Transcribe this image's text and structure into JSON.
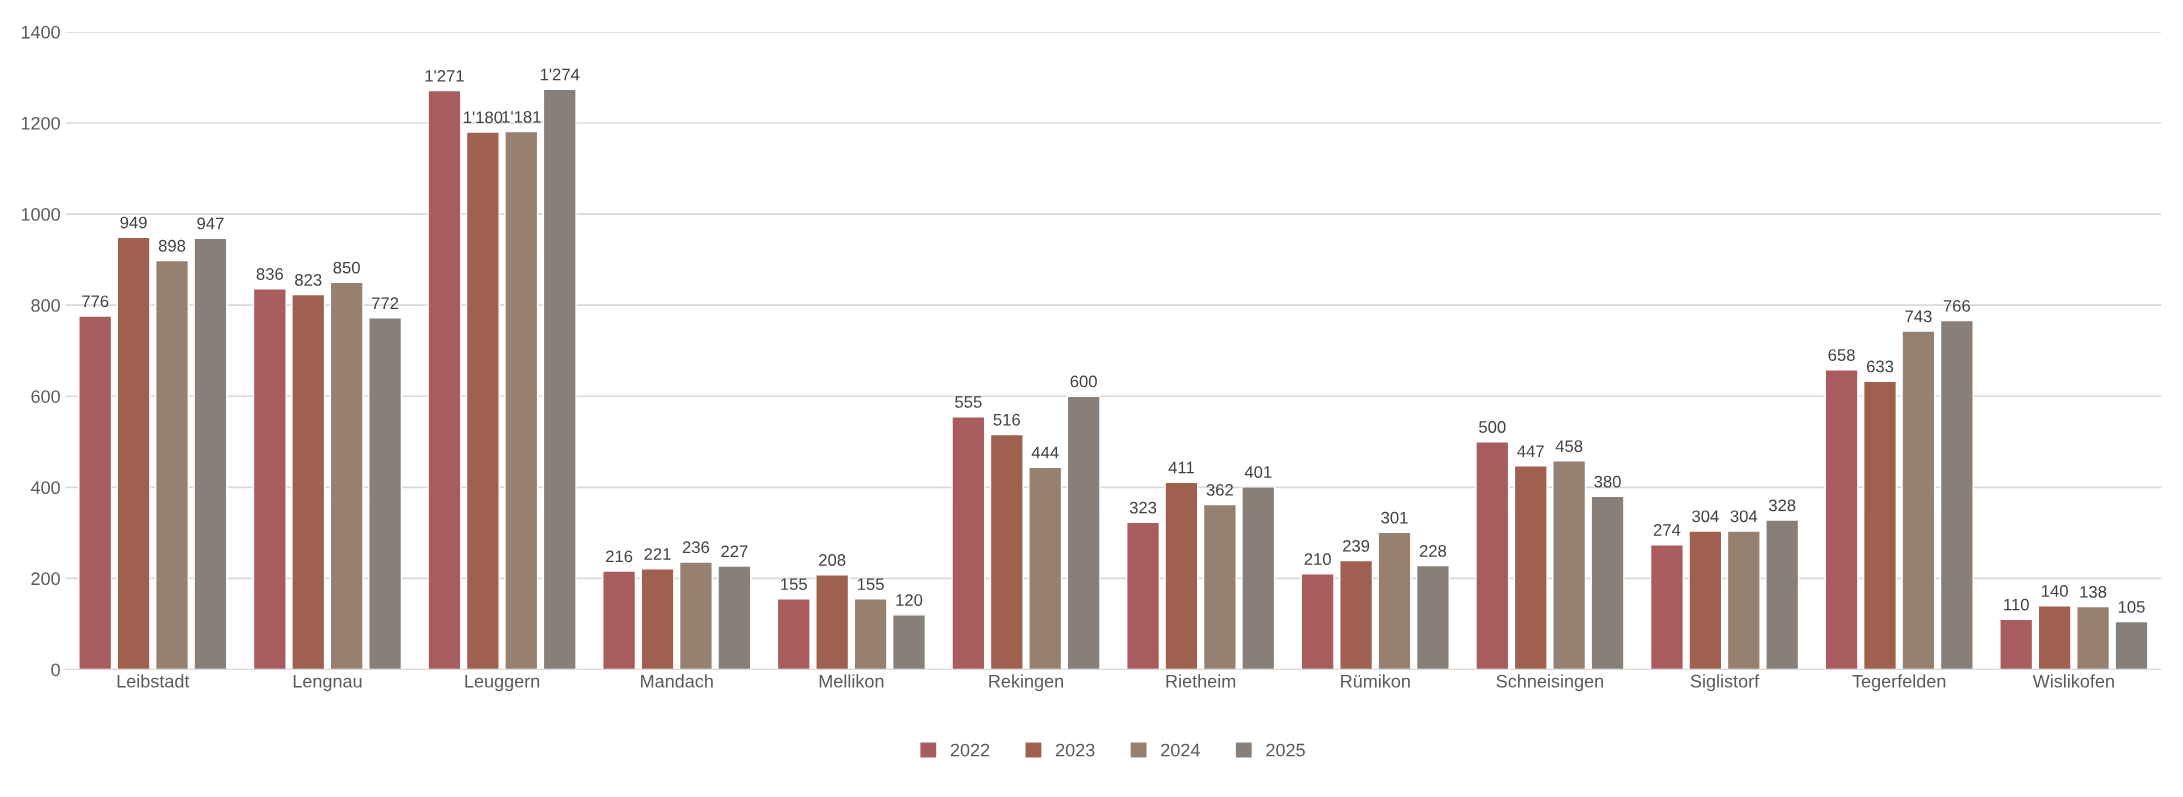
{
  "chart_data": {
    "type": "bar",
    "categories": [
      "Leibstadt",
      "Lengnau",
      "Leuggern",
      "Mandach",
      "Mellikon",
      "Rekingen",
      "Rietheim",
      "Rümikon",
      "Schneisingen",
      "Siglistorf",
      "Tegerfelden",
      "Wislikofen"
    ],
    "series": [
      {
        "name": "2022",
        "color": "#a85c5e",
        "values": [
          776,
          836,
          1271,
          216,
          155,
          555,
          323,
          210,
          500,
          274,
          658,
          110
        ],
        "value_labels": [
          "776",
          "836",
          "1'271",
          "216",
          "155",
          "555",
          "323",
          "210",
          "500",
          "274",
          "658",
          "110"
        ]
      },
      {
        "name": "2023",
        "color": "#a0604f",
        "values": [
          949,
          823,
          1180,
          221,
          208,
          516,
          411,
          239,
          447,
          304,
          633,
          140
        ],
        "value_labels": [
          "949",
          "823",
          "1'180",
          "221",
          "208",
          "516",
          "411",
          "239",
          "447",
          "304",
          "633",
          "140"
        ]
      },
      {
        "name": "2024",
        "color": "#968070",
        "values": [
          898,
          850,
          1181,
          236,
          155,
          444,
          362,
          301,
          458,
          304,
          743,
          138
        ],
        "value_labels": [
          "898",
          "850",
          "1'181",
          "236",
          "155",
          "444",
          "362",
          "301",
          "458",
          "304",
          "743",
          "138"
        ]
      },
      {
        "name": "2025",
        "color": "#888078",
        "values": [
          947,
          772,
          1274,
          227,
          120,
          600,
          401,
          228,
          380,
          328,
          766,
          105
        ],
        "value_labels": [
          "947",
          "772",
          "1'274",
          "227",
          "120",
          "600",
          "401",
          "228",
          "380",
          "328",
          "766",
          "105"
        ]
      }
    ],
    "ylim": [
      0,
      1400
    ],
    "yticks": [
      0,
      200,
      400,
      600,
      800,
      1000,
      1200,
      1400
    ],
    "grid": "y",
    "legend": "bottom"
  }
}
